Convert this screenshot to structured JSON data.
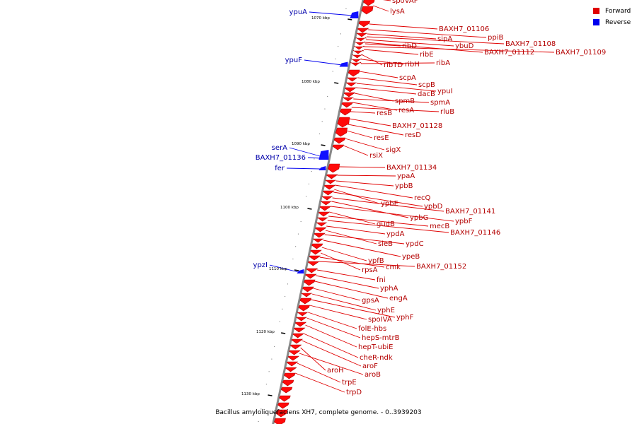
{
  "legend": {
    "forward_label": "Forward",
    "reverse_label": "Reverse",
    "forward_color": "#e00000",
    "reverse_color": "#0000ee"
  },
  "caption": "Bacillus amyloliquefaciens XH7, complete genome. - 0..3939203",
  "colors": {
    "forward_fill": "#ff0a0a",
    "forward_side": "#b20000",
    "forward_label": "#b40000",
    "reverse_fill": "#1010ff",
    "reverse_label": "#0000aa",
    "backbone": "#888888"
  },
  "axis": {
    "ticks": [
      "1070 kbp",
      "1080 kbp",
      "1090 kbp",
      "1100 kbp",
      "1110 kbp",
      "1120 kbp",
      "1130 kbp"
    ]
  },
  "forward_genes": [
    "spoVAF",
    "lysA",
    "BAXH7_01106",
    "ppiB",
    "sipA",
    "BAXH7_01108",
    "ybuD",
    "ribD",
    "BAXH7_01112",
    "BAXH7_01109",
    "ribE",
    "ribTD",
    "ribH",
    "ribA",
    "scpA",
    "scpB",
    "ypuI",
    "dacB",
    "spmB",
    "spmA",
    "resA",
    "rluB",
    "resB",
    "BAXH7_01128",
    "resD",
    "resE",
    "sigX",
    "rsiX",
    "BAXH7_01134",
    "ypaA",
    "ypbB",
    "recQ",
    "ypbE",
    "ypbD",
    "BAXH7_01141",
    "ypbG",
    "ypbF",
    "gudB",
    "mecB",
    "BAXH7_01146",
    "ypdA",
    "sleB",
    "ypdC",
    "ypeB",
    "ypfB",
    "rpsA",
    "cmk",
    "BAXH7_01152",
    "fni",
    "yphA",
    "engA",
    "gpsA",
    "yphE",
    "yphF",
    "spoIVA",
    "folE-hbs",
    "hepS-mtrB",
    "hepT-ubiE",
    "cheR-ndk",
    "aroF",
    "aroH",
    "aroB",
    "trpE",
    "trpD"
  ],
  "reverse_genes": [
    "ypuA",
    "ypuF",
    "serA",
    "BAXH7_01136",
    "fer",
    "ypzI"
  ]
}
